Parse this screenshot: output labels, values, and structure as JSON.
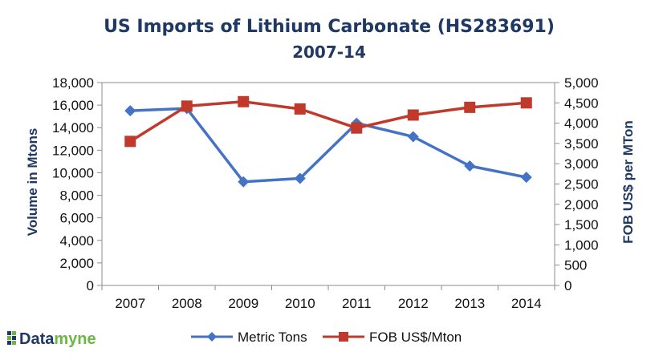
{
  "brand": {
    "logo_part1": "Data",
    "logo_part2": "myne",
    "color_dark": "#1f3864",
    "color_green": "#6bb644"
  },
  "chart_data": {
    "type": "line",
    "title": "US Imports of Lithium Carbonate (HS283691)",
    "subtitle": "2007-14",
    "categories": [
      "2007",
      "2008",
      "2009",
      "2010",
      "2011",
      "2012",
      "2013",
      "2014"
    ],
    "series": [
      {
        "name": "Metric Tons",
        "axis": "left",
        "color": "#4472c4",
        "marker": "diamond",
        "values": [
          15500,
          15700,
          9200,
          9500,
          14400,
          13200,
          10600,
          9600
        ]
      },
      {
        "name": "FOB US$/Mton",
        "axis": "right",
        "color": "#c0392b",
        "marker": "square",
        "values": [
          3550,
          4420,
          4530,
          4350,
          3880,
          4200,
          4390,
          4500
        ]
      }
    ],
    "ylabel": "Volume in Mtons",
    "y2label": "FOB US$ per MTon",
    "ylim": [
      0,
      18000
    ],
    "y2lim": [
      0,
      5000
    ],
    "yticks": [
      "0",
      "2,000",
      "4,000",
      "6,000",
      "8,000",
      "10,000",
      "12,000",
      "14,000",
      "16,000",
      "18,000"
    ],
    "y2ticks": [
      "0",
      "500",
      "1,000",
      "1,500",
      "2,000",
      "2,500",
      "3,000",
      "3,500",
      "4,000",
      "4,500",
      "5,000"
    ],
    "grid": false,
    "legend_position": "bottom"
  }
}
